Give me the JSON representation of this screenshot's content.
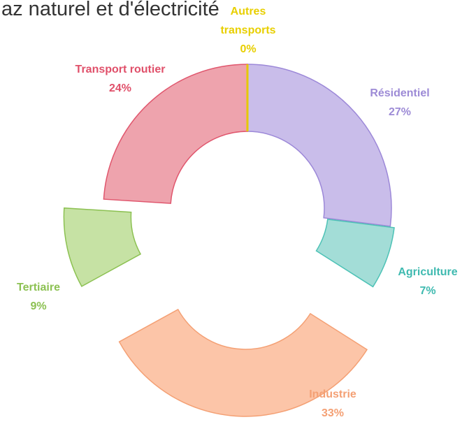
{
  "chart_data": {
    "type": "donut",
    "title": "az naturel et d'électricité",
    "categories": [
      "Résidentiel",
      "Agriculture",
      "Industrie",
      "Tertiaire",
      "Transport routier",
      "Autres transports"
    ],
    "values": [
      27,
      7,
      33,
      9,
      24,
      0
    ],
    "value_labels": [
      "27%",
      "7%",
      "33%",
      "9%",
      "24%",
      "0%"
    ],
    "colors": [
      "#c9bdea",
      "#a3ddd7",
      "#fcc5a8",
      "#c6e2a4",
      "#eea3ad",
      "#f2d400"
    ],
    "edge_colors": [
      "#9c88d8",
      "#4dc2b6",
      "#f4a074",
      "#8cc152",
      "#e0566d",
      "#e6c800"
    ],
    "label_colors": [
      "#9d8bd6",
      "#3fbab0",
      "#f4a074",
      "#8cc152",
      "#e0506a",
      "#e8cf00"
    ]
  }
}
